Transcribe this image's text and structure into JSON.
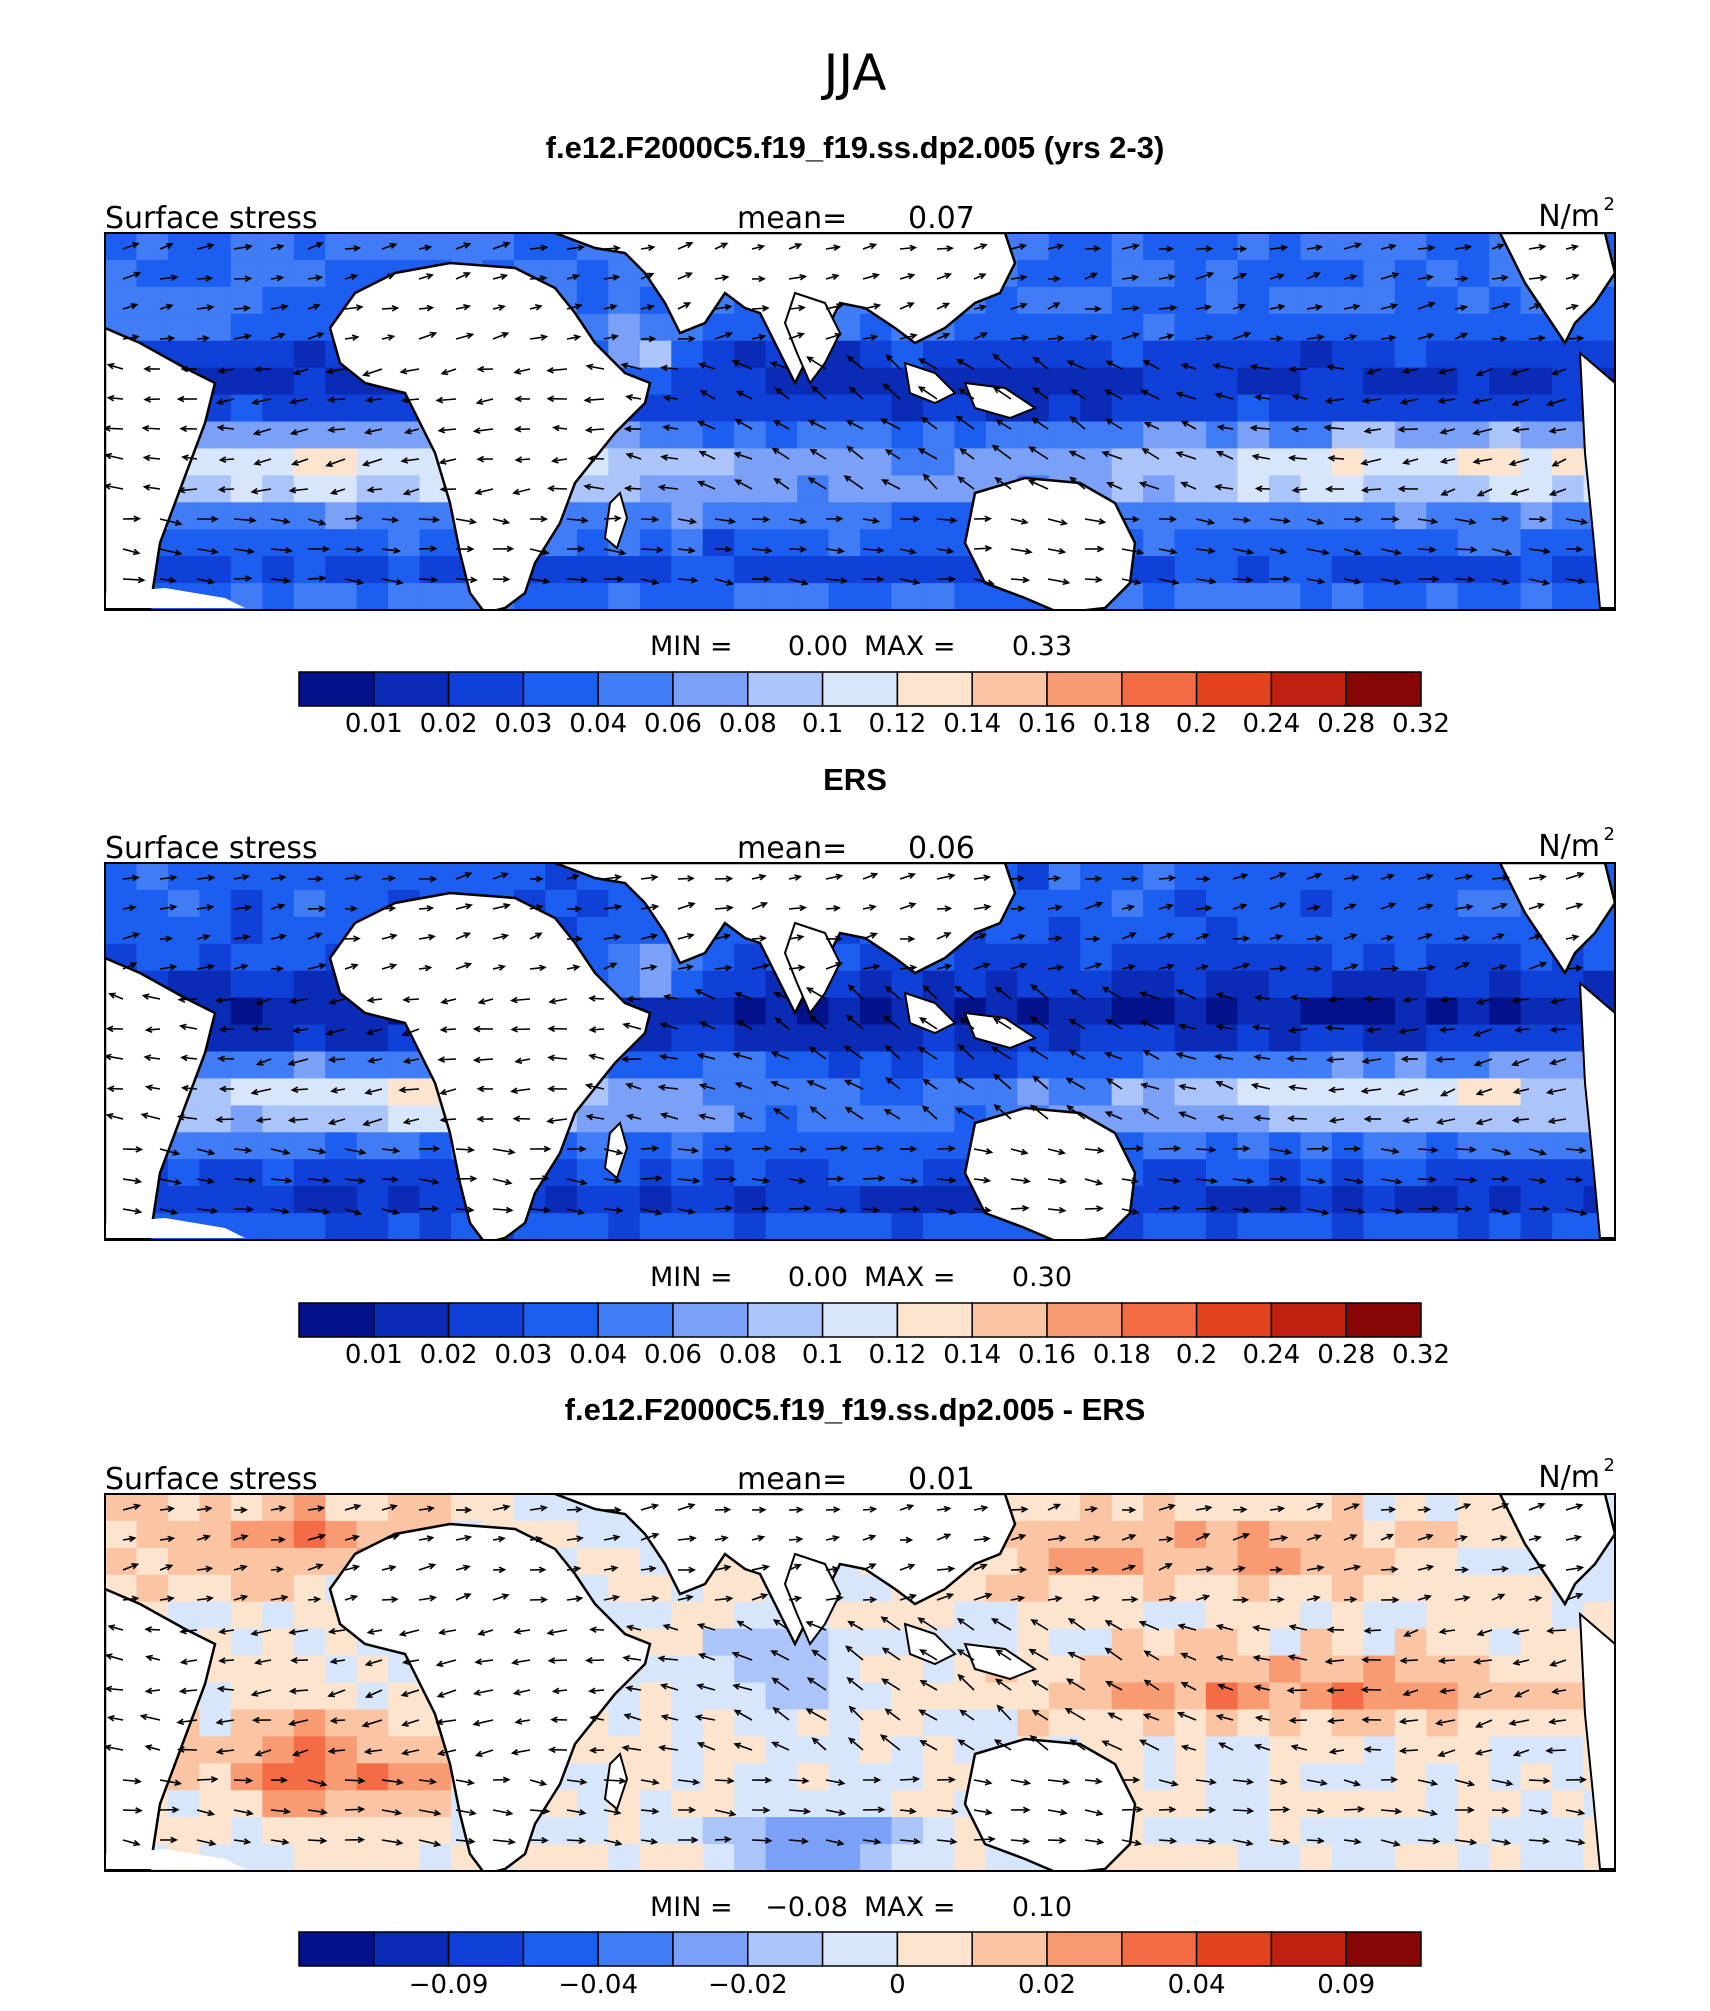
{
  "title": "JJA",
  "ocean_hex": "#2f64e8",
  "panels": [
    {
      "heading": "f.e12.F2000C5.f19_f19.ss.dp2.005 (yrs 2-3)",
      "left_label": "Surface stress",
      "mean_label": "mean=",
      "mean_value": "0.07",
      "units_base": "N/m",
      "units_exp": "2",
      "min_label": "MIN =",
      "min_value": "0.00",
      "max_label": "MAX =",
      "max_value": "0.33",
      "colorbar_ticks": [
        "0.01",
        "0.02",
        "0.03",
        "0.04",
        "0.06",
        "0.08",
        "0.1",
        "0.12",
        "0.14",
        "0.16",
        "0.18",
        "0.2",
        "0.24",
        "0.28",
        "0.32"
      ],
      "tick_mode": "boundaries"
    },
    {
      "heading": "ERS",
      "left_label": "Surface stress",
      "mean_label": "mean=",
      "mean_value": "0.06",
      "units_base": "N/m",
      "units_exp": "2",
      "min_label": "MIN =",
      "min_value": "0.00",
      "max_label": "MAX =",
      "max_value": "0.30",
      "colorbar_ticks": [
        "0.01",
        "0.02",
        "0.03",
        "0.04",
        "0.06",
        "0.08",
        "0.1",
        "0.12",
        "0.14",
        "0.16",
        "0.18",
        "0.2",
        "0.24",
        "0.28",
        "0.32"
      ],
      "tick_mode": "boundaries"
    },
    {
      "heading": "f.e12.F2000C5.f19_f19.ss.dp2.005 - ERS",
      "left_label": "Surface stress",
      "mean_label": "mean=",
      "mean_value": "0.01",
      "units_base": "N/m",
      "units_exp": "2",
      "min_label": "MIN =",
      "min_value": "−0.08",
      "max_label": "MAX =",
      "max_value": "0.10",
      "colorbar_ticks": [
        "−0.09",
        "−0.04",
        "−0.02",
        "0",
        "0.02",
        "0.04",
        "0.09"
      ],
      "tick_mode": "sparse"
    }
  ],
  "colorbar_colors": [
    "#03118a",
    "#0a2bb5",
    "#0f40d8",
    "#1c5ef0",
    "#3f7cf5",
    "#7aa0f7",
    "#abc4fa",
    "#d8e6fc",
    "#fde4cf",
    "#fbc4a3",
    "#f89a72",
    "#f36c45",
    "#e4431f",
    "#bf2110",
    "#860604"
  ]
}
